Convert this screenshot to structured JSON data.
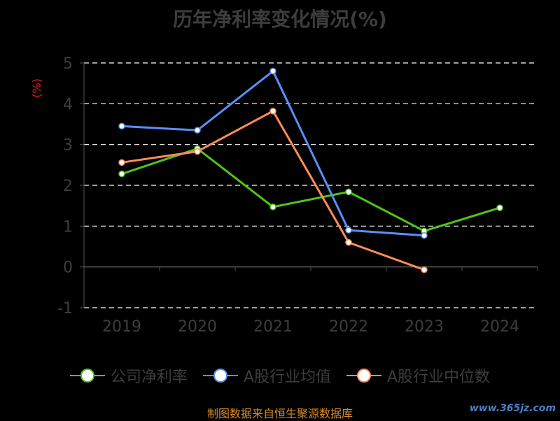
{
  "chart_data": {
    "type": "line",
    "title": "历年净利率变化情况(%)",
    "ylabel": "(%)",
    "xlabel": "",
    "categories": [
      "2019",
      "2020",
      "2021",
      "2022",
      "2023",
      "2024"
    ],
    "yticks": [
      -1,
      0,
      1,
      2,
      3,
      4,
      5
    ],
    "ylim": [
      -1,
      5
    ],
    "grid": true,
    "legend_position": "bottom",
    "series": [
      {
        "name": "公司净利率",
        "color": "#52c41a",
        "values": [
          2.28,
          2.9,
          1.47,
          1.84,
          0.88,
          1.45
        ]
      },
      {
        "name": "A股行业均值",
        "color": "#5b8ff9",
        "values": [
          3.45,
          3.35,
          4.8,
          0.9,
          0.77,
          null
        ]
      },
      {
        "name": "A股行业中位数",
        "color": "#ff8c5a",
        "values": [
          2.56,
          2.83,
          3.82,
          0.6,
          -0.07,
          null
        ]
      }
    ]
  },
  "footer": "制图数据来自恒生聚源数据库",
  "watermark": "www.365jz.com"
}
